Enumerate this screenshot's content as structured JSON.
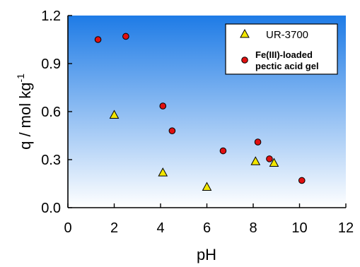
{
  "chart_data": {
    "type": "scatter",
    "xlabel": "pH",
    "ylabel": "q / mol kg",
    "ylabel_sup": "-1",
    "xlim": [
      0,
      12
    ],
    "ylim": [
      0.0,
      1.2
    ],
    "x_ticks": [
      "0",
      "2",
      "4",
      "6",
      "8",
      "10",
      "12"
    ],
    "y_ticks": [
      "0.0",
      "0.3",
      "0.6",
      "0.9",
      "1.2"
    ],
    "x_tick_values": [
      0,
      2,
      4,
      6,
      8,
      10,
      12
    ],
    "y_tick_values": [
      0.0,
      0.3,
      0.6,
      0.9,
      1.2
    ],
    "grid": false,
    "legend_position": "top-right",
    "background_gradient": [
      "#1e7be6",
      "#ffffff"
    ],
    "series": [
      {
        "name": "UR-3700",
        "marker": "triangle",
        "color": "#f2e600",
        "x": [
          2.0,
          4.1,
          6.0,
          8.1,
          8.9
        ],
        "y": [
          0.58,
          0.22,
          0.13,
          0.29,
          0.28
        ]
      },
      {
        "name": "Fe(III)-loaded pectic acid gel",
        "name_lines": [
          "Fe(III)-loaded",
          "pectic acid gel"
        ],
        "marker": "circle",
        "color": "#e01010",
        "x": [
          1.3,
          2.5,
          4.1,
          4.5,
          6.7,
          8.2,
          8.7,
          10.1
        ],
        "y": [
          1.05,
          1.07,
          0.635,
          0.48,
          0.355,
          0.41,
          0.305,
          0.17
        ]
      }
    ]
  }
}
